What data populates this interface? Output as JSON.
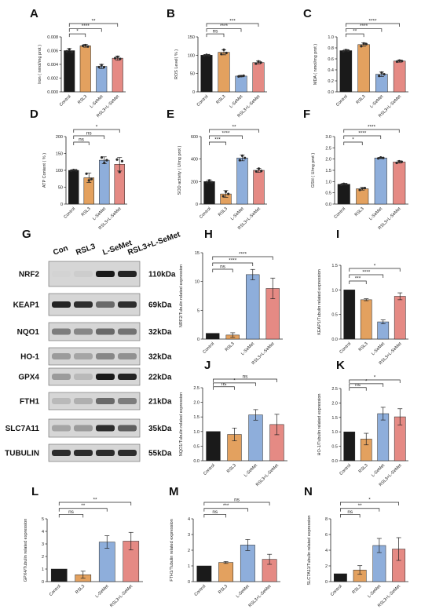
{
  "colors": {
    "control": "#1a1a1a",
    "rsl3": "#e3a15f",
    "lsemet": "#8eaedb",
    "combo": "#e58a84",
    "point": "#2a2a2a"
  },
  "categories": [
    "Control",
    "RSL3",
    "L-SeMet",
    "RSL3+L-SeMet"
  ],
  "western_blot": {
    "letter": "G",
    "lanes": [
      "Con",
      "RSL3",
      "L-SeMet",
      "RSL3+L-SeMet"
    ],
    "bands": [
      {
        "protein": "NRF2",
        "kda": "110kDa",
        "intensity": [
          0.02,
          0.05,
          0.95,
          0.9
        ]
      },
      {
        "protein": "KEAP1",
        "kda": "69kDa",
        "intensity": [
          0.9,
          0.85,
          0.55,
          0.85
        ]
      },
      {
        "protein": "NQO1",
        "kda": "32kDa",
        "intensity": [
          0.45,
          0.4,
          0.55,
          0.5
        ]
      },
      {
        "protein": "HO-1",
        "kda": "32kDa",
        "intensity": [
          0.3,
          0.25,
          0.4,
          0.35
        ]
      },
      {
        "protein": "GPX4",
        "kda": "22kDa",
        "intensity": [
          0.3,
          0.15,
          0.95,
          0.9
        ]
      },
      {
        "protein": "FTH1",
        "kda": "21kDa",
        "intensity": [
          0.15,
          0.2,
          0.55,
          0.45
        ]
      },
      {
        "protein": "SLC7A11",
        "kda": "35kDa",
        "intensity": [
          0.25,
          0.3,
          0.85,
          0.6
        ]
      },
      {
        "protein": "TUBULIN",
        "kda": "55kDa",
        "intensity": [
          0.85,
          0.85,
          0.85,
          0.85
        ]
      }
    ]
  },
  "chart_data": [
    {
      "letter": "A",
      "type": "bar",
      "ylabel": "Iron ( nmol/mg prot )",
      "ylim": [
        0,
        0.008
      ],
      "yticks": [
        "0.000",
        "0.002",
        "0.004",
        "0.006",
        "0.008"
      ],
      "values": [
        0.006,
        0.0067,
        0.0037,
        0.0049
      ],
      "errors": [
        0.0003,
        0.0002,
        0.0003,
        0.0003
      ],
      "points": [
        [
          0.0059,
          0.0062,
          0.0058
        ],
        [
          0.0067,
          0.0068,
          0.0066
        ],
        [
          0.0036,
          0.0039,
          0.0036
        ],
        [
          0.0049,
          0.0051,
          0.0048
        ]
      ],
      "comparisons": [
        {
          "to": 1,
          "label": "*"
        },
        {
          "to": 2,
          "label": "****"
        },
        {
          "to": 3,
          "label": "**"
        }
      ]
    },
    {
      "letter": "B",
      "type": "bar",
      "ylabel": "ROS Level( % )",
      "ylim": [
        0,
        150
      ],
      "yticks": [
        "0",
        "50",
        "100",
        "150"
      ],
      "values": [
        100,
        108,
        43,
        80
      ],
      "errors": [
        2,
        7,
        2,
        4
      ],
      "points": [
        [
          99,
          101,
          100
        ],
        [
          103,
          115,
          106
        ],
        [
          42,
          43,
          44
        ],
        [
          77,
          83,
          80
        ]
      ],
      "comparisons": [
        {
          "to": 1,
          "label": "ns"
        },
        {
          "to": 2,
          "label": "****"
        },
        {
          "to": 3,
          "label": "***"
        }
      ]
    },
    {
      "letter": "C",
      "type": "bar",
      "ylabel": "MDA ( nmol/mg prot )",
      "ylim": [
        0,
        1.0
      ],
      "yticks": [
        "0.0",
        "0.2",
        "0.4",
        "0.6",
        "0.8",
        "1.0"
      ],
      "values": [
        0.75,
        0.86,
        0.32,
        0.56
      ],
      "errors": [
        0.02,
        0.03,
        0.04,
        0.02
      ],
      "points": [
        [
          0.74,
          0.76,
          0.75
        ],
        [
          0.83,
          0.88,
          0.87
        ],
        [
          0.29,
          0.35,
          0.32
        ],
        [
          0.55,
          0.57,
          0.56
        ]
      ],
      "comparisons": [
        {
          "to": 1,
          "label": "**"
        },
        {
          "to": 2,
          "label": "****"
        },
        {
          "to": 3,
          "label": "****"
        }
      ]
    },
    {
      "letter": "D",
      "type": "bar",
      "ylabel": "ATP Content ( % )",
      "ylim": [
        0,
        200
      ],
      "yticks": [
        "0",
        "50",
        "100",
        "150",
        "200"
      ],
      "values": [
        100,
        78,
        130,
        118
      ],
      "errors": [
        2,
        14,
        10,
        20
      ],
      "points": [
        [
          99,
          101,
          100
        ],
        [
          90,
          70,
          74
        ],
        [
          138,
          122,
          130
        ],
        [
          132,
          95,
          127
        ]
      ],
      "comparisons": [
        {
          "to": 1,
          "label": "ns"
        },
        {
          "to": 2,
          "label": "ns"
        },
        {
          "to": 3,
          "label": "*"
        }
      ]
    },
    {
      "letter": "E",
      "type": "bar",
      "ylabel": "SOD activity ( U/mg prot )",
      "ylim": [
        0,
        600
      ],
      "yticks": [
        "0",
        "200",
        "400",
        "600"
      ],
      "values": [
        200,
        90,
        410,
        300
      ],
      "errors": [
        15,
        30,
        25,
        18
      ],
      "points": [
        [
          195,
          210,
          195
        ],
        [
          70,
          110,
          90
        ],
        [
          390,
          430,
          410
        ],
        [
          290,
          315,
          295
        ]
      ],
      "comparisons": [
        {
          "to": 1,
          "label": "***"
        },
        {
          "to": 2,
          "label": "****"
        },
        {
          "to": 3,
          "label": "**"
        }
      ]
    },
    {
      "letter": "F",
      "type": "bar",
      "ylabel": "GSH ( U/mg prot )",
      "ylim": [
        0,
        3.0
      ],
      "yticks": [
        "0.0",
        "0.5",
        "1.0",
        "1.5",
        "2.0",
        "2.5",
        "3.0"
      ],
      "values": [
        0.88,
        0.68,
        2.05,
        1.87
      ],
      "errors": [
        0.04,
        0.06,
        0.03,
        0.05
      ],
      "points": [
        [
          0.86,
          0.9,
          0.88
        ],
        [
          0.63,
          0.7,
          0.71
        ],
        [
          2.03,
          2.07,
          2.05
        ],
        [
          1.83,
          1.9,
          1.88
        ]
      ],
      "comparisons": [
        {
          "to": 1,
          "label": "*"
        },
        {
          "to": 2,
          "label": "****"
        },
        {
          "to": 3,
          "label": "****"
        }
      ]
    },
    {
      "letter": "H",
      "type": "bar",
      "ylabel": "NRF2/Tubulin related expression",
      "ylim": [
        0,
        15
      ],
      "yticks": [
        "0",
        "5",
        "10",
        "15"
      ],
      "values": [
        1,
        0.7,
        11.2,
        8.8
      ],
      "errors": [
        0,
        0.4,
        0.9,
        1.8
      ],
      "comparisons": [
        {
          "to": 1,
          "label": "ns"
        },
        {
          "to": 2,
          "label": "****"
        },
        {
          "to": 3,
          "label": "****"
        }
      ]
    },
    {
      "letter": "I",
      "type": "bar",
      "ylabel": "KEAP1/Tubulin related expression",
      "ylim": [
        0,
        1.5
      ],
      "yticks": [
        "0.0",
        "0.5",
        "1.0",
        "1.5"
      ],
      "values": [
        1.0,
        0.8,
        0.35,
        0.87
      ],
      "errors": [
        0,
        0.02,
        0.04,
        0.07
      ],
      "comparisons": [
        {
          "to": 1,
          "label": "***"
        },
        {
          "to": 2,
          "label": "****"
        },
        {
          "to": 3,
          "label": "*"
        }
      ]
    },
    {
      "letter": "J",
      "type": "bar",
      "ylabel": "NQO1/Tubulin related expression",
      "ylim": [
        0,
        2.5
      ],
      "yticks": [
        "0.0",
        "0.5",
        "1.0",
        "1.5",
        "2.0",
        "2.5"
      ],
      "values": [
        1.0,
        0.9,
        1.57,
        1.24
      ],
      "errors": [
        0,
        0.22,
        0.18,
        0.35
      ],
      "comparisons": [
        {
          "to": 1,
          "label": "ns"
        },
        {
          "to": 2,
          "label": "*"
        },
        {
          "to": 3,
          "label": "ns"
        }
      ]
    },
    {
      "letter": "K",
      "type": "bar",
      "ylabel": "HO-1/Tubulin related expression",
      "ylim": [
        0,
        2.5
      ],
      "yticks": [
        "0.0",
        "0.5",
        "1.0",
        "1.5",
        "2.0",
        "2.5"
      ],
      "values": [
        1.0,
        0.75,
        1.63,
        1.52
      ],
      "errors": [
        0,
        0.2,
        0.22,
        0.28
      ],
      "comparisons": [
        {
          "to": 1,
          "label": "ns"
        },
        {
          "to": 2,
          "label": "*"
        },
        {
          "to": 3,
          "label": "*"
        }
      ]
    },
    {
      "letter": "L",
      "type": "bar",
      "ylabel": "GPX4/Tubulin related expression",
      "ylim": [
        0,
        5
      ],
      "yticks": [
        "0",
        "1",
        "2",
        "3",
        "4",
        "5"
      ],
      "values": [
        1.0,
        0.55,
        3.15,
        3.22
      ],
      "errors": [
        0,
        0.28,
        0.5,
        0.7
      ],
      "comparisons": [
        {
          "to": 1,
          "label": "ns"
        },
        {
          "to": 2,
          "label": "**"
        },
        {
          "to": 3,
          "label": "**"
        }
      ]
    },
    {
      "letter": "M",
      "type": "bar",
      "ylabel": "FTH1/Tubulin related expression",
      "ylim": [
        0,
        4
      ],
      "yticks": [
        "0",
        "1",
        "2",
        "3",
        "4"
      ],
      "values": [
        1.0,
        1.22,
        2.33,
        1.42
      ],
      "errors": [
        0,
        0.06,
        0.35,
        0.32
      ],
      "comparisons": [
        {
          "to": 1,
          "label": "ns"
        },
        {
          "to": 2,
          "label": "***"
        },
        {
          "to": 3,
          "label": "ns"
        }
      ]
    },
    {
      "letter": "N",
      "type": "bar",
      "ylabel": "SLC7A11/Tubulin related expression",
      "ylim": [
        0,
        8
      ],
      "yticks": [
        "0",
        "2",
        "4",
        "6",
        "8"
      ],
      "values": [
        1.0,
        1.48,
        4.6,
        4.15
      ],
      "errors": [
        0,
        0.55,
        0.9,
        1.45
      ],
      "comparisons": [
        {
          "to": 1,
          "label": "ns"
        },
        {
          "to": 2,
          "label": "**"
        },
        {
          "to": 3,
          "label": "*"
        }
      ]
    }
  ]
}
